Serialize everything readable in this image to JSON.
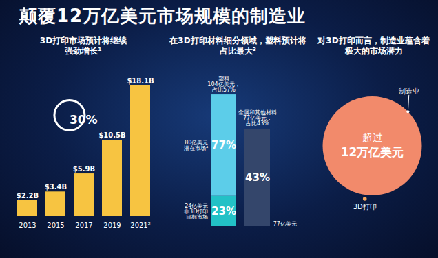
{
  "title": "颠覆12万亿美元市场规模的制造业",
  "chart_data": [
    {
      "type": "bar",
      "title": "3D打印市场预计将继续强劲增长¹",
      "categories": [
        "2013",
        "2015",
        "2017",
        "2019",
        "2021²"
      ],
      "values": [
        2.2,
        3.4,
        5.9,
        10.5,
        18.1
      ],
      "value_labels": [
        "$2.2B",
        "$3.4B",
        "$5.9B",
        "$10.5B",
        "$18.1B"
      ],
      "data_labels": true,
      "color": "#f7c441",
      "ylim": [
        0,
        20
      ],
      "tick_labels": "x",
      "annotations": [
        "30%"
      ]
    },
    {
      "type": "bar",
      "stacked": true,
      "title": "在3D打印材料细分领域，塑料预计将占比最大³",
      "categories": [
        "塑料 104亿美元，占比57%",
        "金属和其他材料 77亿美元，占比43%"
      ],
      "segments": [
        {
          "category": "塑料 104亿美元，占比57%",
          "value": 24,
          "share_label": "23%",
          "side_label": [
            "24亿美元",
            "非3D打印",
            "目标市场"
          ],
          "color": "#22c1c6"
        },
        {
          "category": "塑料 104亿美元，占比57%",
          "value": 80,
          "share_label": "77%",
          "side_label": [
            "80亿美元",
            "潜在市场⁴"
          ],
          "color": "#5ccde9"
        },
        {
          "category": "金属和其他材料 77亿美元，占比43%",
          "value": 77,
          "share_label": "43%",
          "side_label": [
            "77亿美元"
          ],
          "color": "#34466b"
        }
      ],
      "ylim": [
        0,
        110
      ],
      "tick_labels": false
    },
    {
      "type": "bubble",
      "title": "对3D打印而言，制造业蕴含着极大的市场潜力",
      "categories": [
        "制造业",
        "3D打印"
      ],
      "sizes": [
        12,
        0.0181
      ],
      "colors": [
        "#f28a6b",
        "#f5a55a"
      ],
      "center_label": [
        "超过",
        "12万亿美元"
      ]
    }
  ]
}
